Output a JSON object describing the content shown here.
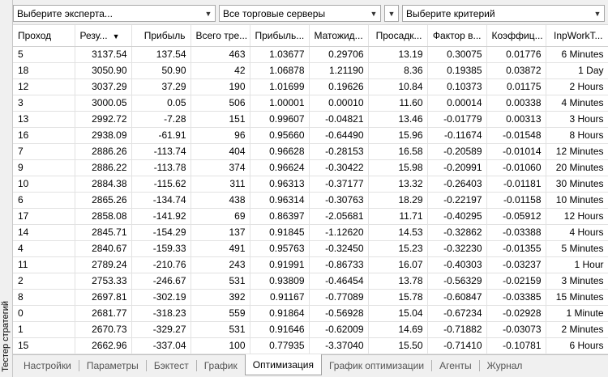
{
  "side_panel": {
    "title": "Тестер стратегий"
  },
  "toolbar": {
    "expert_select": "Выберите эксперта...",
    "server_select": "Все торговые серверы",
    "criteria_select": "Выберите критерий"
  },
  "table": {
    "columns": [
      "Проход",
      "Резу...",
      "Прибыль",
      "Всего тре...",
      "Прибыль...",
      "Матожид...",
      "Просадк...",
      "Фактор в...",
      "Коэффиц...",
      "InpWorkT..."
    ],
    "sorted_column": 1,
    "rows": [
      [
        "5",
        "3137.54",
        "137.54",
        "463",
        "1.03677",
        "0.29706",
        "13.19",
        "0.30075",
        "0.01776",
        "6 Minutes"
      ],
      [
        "18",
        "3050.90",
        "50.90",
        "42",
        "1.06878",
        "1.21190",
        "8.36",
        "0.19385",
        "0.03872",
        "1 Day"
      ],
      [
        "12",
        "3037.29",
        "37.29",
        "190",
        "1.01699",
        "0.19626",
        "10.84",
        "0.10373",
        "0.01175",
        "2 Hours"
      ],
      [
        "3",
        "3000.05",
        "0.05",
        "506",
        "1.00001",
        "0.00010",
        "11.60",
        "0.00014",
        "0.00338",
        "4 Minutes"
      ],
      [
        "13",
        "2992.72",
        "-7.28",
        "151",
        "0.99607",
        "-0.04821",
        "13.46",
        "-0.01779",
        "0.00313",
        "3 Hours"
      ],
      [
        "16",
        "2938.09",
        "-61.91",
        "96",
        "0.95660",
        "-0.64490",
        "15.96",
        "-0.11674",
        "-0.01548",
        "8 Hours"
      ],
      [
        "7",
        "2886.26",
        "-113.74",
        "404",
        "0.96628",
        "-0.28153",
        "16.58",
        "-0.20589",
        "-0.01014",
        "12 Minutes"
      ],
      [
        "9",
        "2886.22",
        "-113.78",
        "374",
        "0.96624",
        "-0.30422",
        "15.98",
        "-0.20991",
        "-0.01060",
        "20 Minutes"
      ],
      [
        "10",
        "2884.38",
        "-115.62",
        "311",
        "0.96313",
        "-0.37177",
        "13.32",
        "-0.26403",
        "-0.01181",
        "30 Minutes"
      ],
      [
        "6",
        "2865.26",
        "-134.74",
        "438",
        "0.96314",
        "-0.30763",
        "18.29",
        "-0.22197",
        "-0.01158",
        "10 Minutes"
      ],
      [
        "17",
        "2858.08",
        "-141.92",
        "69",
        "0.86397",
        "-2.05681",
        "11.71",
        "-0.40295",
        "-0.05912",
        "12 Hours"
      ],
      [
        "14",
        "2845.71",
        "-154.29",
        "137",
        "0.91845",
        "-1.12620",
        "14.53",
        "-0.32862",
        "-0.03388",
        "4 Hours"
      ],
      [
        "4",
        "2840.67",
        "-159.33",
        "491",
        "0.95763",
        "-0.32450",
        "15.23",
        "-0.32230",
        "-0.01355",
        "5 Minutes"
      ],
      [
        "11",
        "2789.24",
        "-210.76",
        "243",
        "0.91991",
        "-0.86733",
        "16.07",
        "-0.40303",
        "-0.03237",
        "1 Hour"
      ],
      [
        "2",
        "2753.33",
        "-246.67",
        "531",
        "0.93809",
        "-0.46454",
        "13.78",
        "-0.56329",
        "-0.02159",
        "3 Minutes"
      ],
      [
        "8",
        "2697.81",
        "-302.19",
        "392",
        "0.91167",
        "-0.77089",
        "15.78",
        "-0.60847",
        "-0.03385",
        "15 Minutes"
      ],
      [
        "0",
        "2681.77",
        "-318.23",
        "559",
        "0.91864",
        "-0.56928",
        "15.04",
        "-0.67234",
        "-0.02928",
        "1 Minute"
      ],
      [
        "1",
        "2670.73",
        "-329.27",
        "531",
        "0.91646",
        "-0.62009",
        "14.69",
        "-0.71882",
        "-0.03073",
        "2 Minutes"
      ],
      [
        "15",
        "2662.96",
        "-337.04",
        "100",
        "0.77935",
        "-3.37040",
        "15.50",
        "-0.71410",
        "-0.10781",
        "6 Hours"
      ]
    ]
  },
  "tabs": [
    "Настройки",
    "Параметры",
    "Бэктест",
    "График",
    "Оптимизация",
    "График оптимизации",
    "Агенты",
    "Журнал"
  ],
  "active_tab": 4,
  "icons": {
    "dropdown": "chevron-down-icon",
    "sort": "sort-desc-icon"
  }
}
